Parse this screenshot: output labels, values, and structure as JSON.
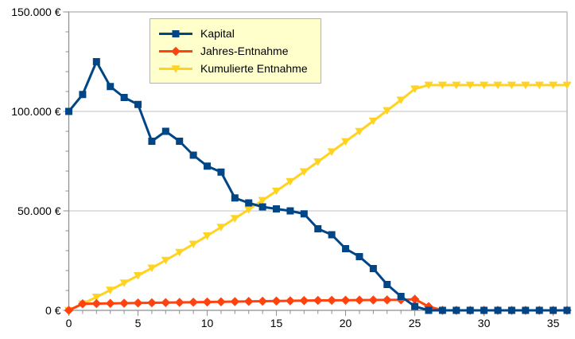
{
  "window": {
    "background": "#ffffff"
  },
  "chart": {
    "colors": {
      "grid": "#c0c0c0",
      "border": "#b9b9b9",
      "axis": "#8f8f8f",
      "text": "#000000",
      "legend_bg": "#ffffcc",
      "legend_border": "#b3b3b3"
    }
  },
  "chart_data": {
    "type": "line",
    "title": "",
    "xlabel": "",
    "ylabel": "",
    "grid": "horizontal-major",
    "legend_position": "top-center-inside",
    "xlim": [
      0,
      36
    ],
    "ylim": [
      0,
      150000
    ],
    "x_ticks": [
      0,
      5,
      10,
      15,
      20,
      25,
      30,
      35
    ],
    "x_tick_labels": [
      "0",
      "5",
      "10",
      "15",
      "20",
      "25",
      "30",
      "35"
    ],
    "x_minor_step": 1,
    "y_ticks": [
      0,
      50000,
      100000,
      150000
    ],
    "y_tick_labels": [
      "0 €",
      "50.000 €",
      "100.000 €",
      "150.000 €"
    ],
    "y_minor_step": 10000,
    "x": [
      0,
      1,
      2,
      3,
      4,
      5,
      6,
      7,
      8,
      9,
      10,
      11,
      12,
      13,
      14,
      15,
      16,
      17,
      18,
      19,
      20,
      21,
      22,
      23,
      24,
      25,
      26,
      27,
      28,
      29,
      30,
      31,
      32,
      33,
      34,
      35,
      36
    ],
    "series": [
      {
        "name": "Kapital",
        "color": "#004586",
        "marker": "square",
        "values": [
          100000,
          108500,
          125000,
          112500,
          107000,
          103500,
          85000,
          90000,
          85000,
          78000,
          72500,
          69500,
          56500,
          54000,
          52000,
          51000,
          50000,
          48500,
          41000,
          38000,
          31000,
          27000,
          21000,
          13000,
          7000,
          2000,
          0,
          0,
          0,
          0,
          0,
          0,
          0,
          0,
          0,
          0,
          0
        ]
      },
      {
        "name": "Jahres-Entnahme",
        "color": "#ff420e",
        "marker": "diamond",
        "values": [
          0,
          3300,
          3400,
          3500,
          3600,
          3700,
          3800,
          3900,
          4000,
          4100,
          4200,
          4300,
          4400,
          4500,
          4600,
          4700,
          4800,
          4900,
          5000,
          5050,
          5100,
          5150,
          5200,
          5250,
          5300,
          5600,
          1900,
          0,
          0,
          0,
          0,
          0,
          0,
          0,
          0,
          0,
          0
        ]
      },
      {
        "name": "Kumulierte Entnahme",
        "color": "#ffd320",
        "marker": "triangle-down",
        "values": [
          0,
          3300,
          6700,
          10200,
          13800,
          17500,
          21300,
          25200,
          29200,
          33300,
          37500,
          41800,
          46200,
          50700,
          55300,
          60000,
          64800,
          69700,
          74700,
          79750,
          84850,
          90000,
          95200,
          100450,
          105750,
          111350,
          113250,
          113250,
          113250,
          113250,
          113250,
          113250,
          113250,
          113250,
          113250,
          113250,
          113250
        ]
      }
    ]
  }
}
